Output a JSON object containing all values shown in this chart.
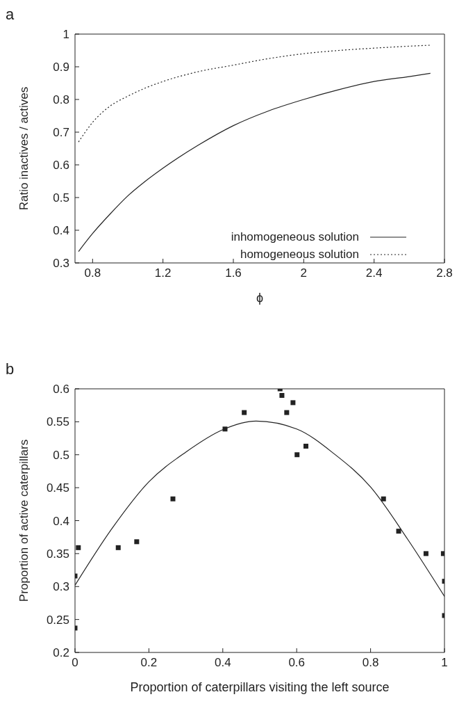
{
  "chart_data": [
    {
      "type": "line",
      "title": "a",
      "xlabel": "ϕ",
      "ylabel": "Ratio inactives / actives",
      "xlim": [
        0.7,
        2.8
      ],
      "xticks": [
        0.8,
        1.2,
        1.6,
        2,
        2.4,
        2.8
      ],
      "ylim": [
        0.3,
        1
      ],
      "yticks": [
        0.3,
        0.4,
        0.5,
        0.6,
        0.7,
        0.8,
        0.9,
        1
      ],
      "legend": "bottom right",
      "marker": "none",
      "series": [
        {
          "name": "inhomogeneous solution",
          "color": "#222222",
          "line_style": "solid",
          "x": [
            0.72,
            0.8,
            0.9,
            1.0,
            1.1,
            1.2,
            1.4,
            1.6,
            1.8,
            2.0,
            2.2,
            2.4,
            2.6,
            2.72
          ],
          "values": [
            0.335,
            0.39,
            0.45,
            0.505,
            0.55,
            0.59,
            0.66,
            0.72,
            0.765,
            0.8,
            0.83,
            0.855,
            0.87,
            0.88
          ]
        },
        {
          "name": "homogeneous solution",
          "color": "#222222",
          "line_style": "dotted",
          "x": [
            0.72,
            0.8,
            0.9,
            1.0,
            1.1,
            1.2,
            1.4,
            1.6,
            1.8,
            2.0,
            2.2,
            2.4,
            2.6,
            2.72
          ],
          "values": [
            0.67,
            0.73,
            0.78,
            0.81,
            0.835,
            0.855,
            0.885,
            0.905,
            0.925,
            0.94,
            0.95,
            0.957,
            0.963,
            0.966
          ]
        }
      ]
    },
    {
      "type": "scatter",
      "title": "b",
      "xlabel": "Proportion of caterpillars visiting the left source",
      "ylabel": "Proportion of active caterpillars",
      "xlim": [
        0,
        1
      ],
      "xticks": [
        0,
        0.2,
        0.4,
        0.6,
        0.8,
        1
      ],
      "ylim": [
        0.2,
        0.6
      ],
      "yticks": [
        0.2,
        0.25,
        0.3,
        0.35,
        0.4,
        0.45,
        0.5,
        0.55,
        0.6
      ],
      "legend": false,
      "series": [
        {
          "color": "#222222",
          "marker": "square",
          "x": [
            0,
            0,
            0.009,
            0.117,
            0.167,
            0.265,
            0.406,
            0.458,
            0.555,
            0.56,
            0.59,
            0.573,
            0.601,
            0.625,
            0.835,
            0.876,
            0.95,
            0.997,
            1,
            1
          ],
          "values": [
            0.237,
            0.316,
            0.359,
            0.359,
            0.368,
            0.433,
            0.539,
            0.564,
            0.6,
            0.59,
            0.579,
            0.564,
            0.5,
            0.513,
            0.433,
            0.384,
            0.35,
            0.35,
            0.308,
            0.256
          ]
        },
        {
          "type": "line",
          "color": "#222222",
          "line_style": "solid",
          "marker": "none",
          "x": [
            0,
            0.1,
            0.2,
            0.3,
            0.4,
            0.49,
            0.6,
            0.7,
            0.8,
            0.9,
            1
          ],
          "values": [
            0.302,
            0.388,
            0.459,
            0.504,
            0.538,
            0.551,
            0.539,
            0.502,
            0.451,
            0.372,
            0.285
          ]
        }
      ]
    }
  ]
}
